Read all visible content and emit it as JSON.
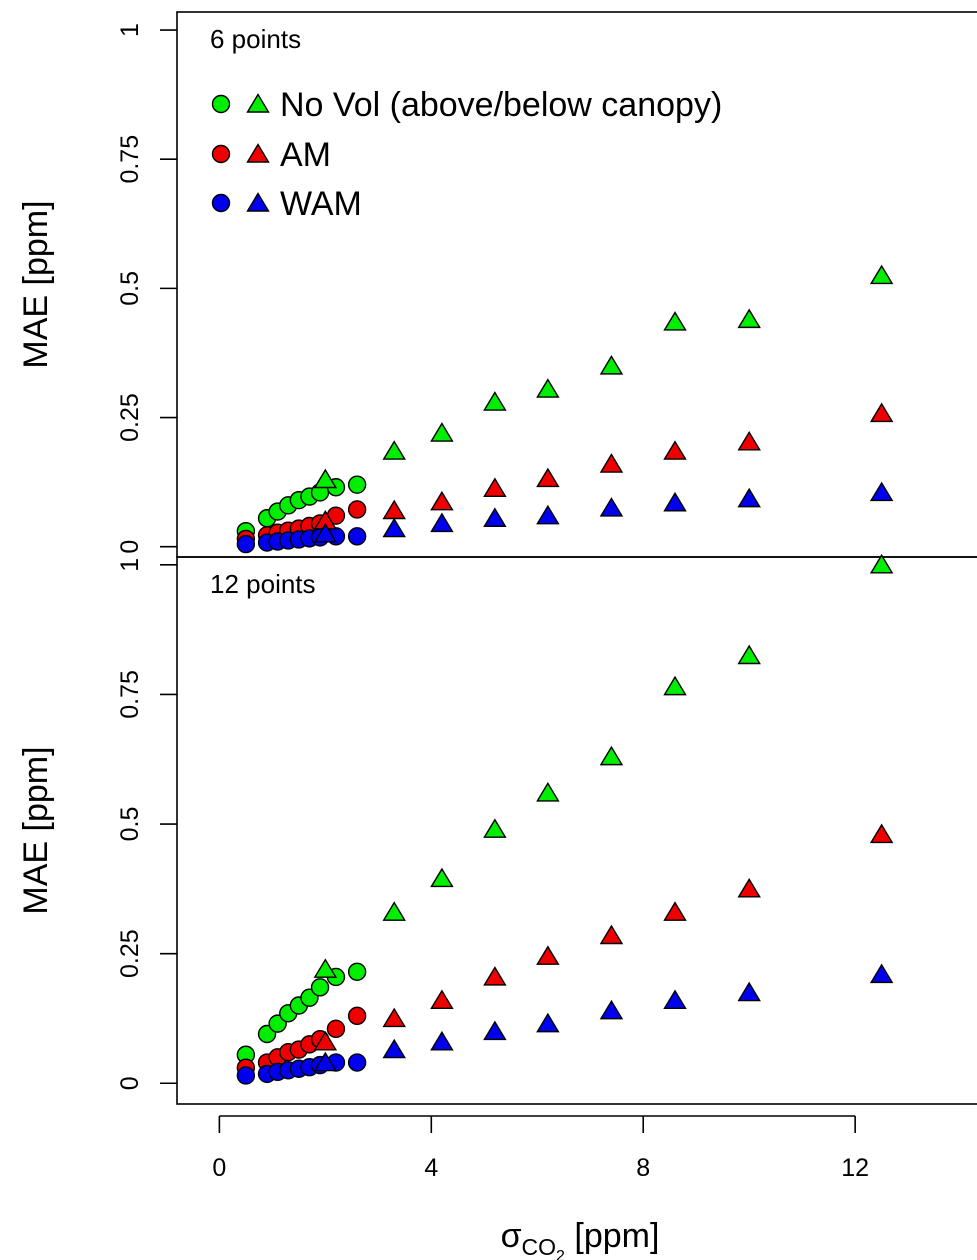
{
  "chart_data": {
    "type": "scatter",
    "xlabel_symbol": "σ",
    "xlabel_subscript": "CO",
    "xlabel_sub_subscript": "2",
    "xlabel_unit": " [ppm]",
    "ylabel": "MAE [ppm]",
    "xlim": [
      -0.8,
      14.3
    ],
    "x_ticks": [
      0,
      4,
      8,
      12
    ],
    "x_tick_labels": [
      "0",
      "4",
      "8",
      "12"
    ],
    "y_ticks": [
      0,
      0.25,
      0.5,
      0.75,
      1
    ],
    "y_tick_labels": [
      "0",
      "0.25",
      "0.5",
      "0.75",
      "1"
    ],
    "colors": {
      "No Vol": "#00ee00",
      "AM": "#ee0000",
      "WAM": "#0000ee"
    },
    "legend": {
      "position": "top-left",
      "entries": [
        {
          "label": "No Vol (above/below canopy)",
          "color": "#00ee00"
        },
        {
          "label": "AM",
          "color": "#ee0000"
        },
        {
          "label": "WAM",
          "color": "#0000ee"
        }
      ]
    },
    "panels": [
      {
        "label": "6 points",
        "ylim": [
          -0.02,
          1.035
        ],
        "series": [
          {
            "name": "No Vol",
            "marker": "circle",
            "x": [
              0.5,
              0.9,
              1.1,
              1.3,
              1.5,
              1.7,
              1.9,
              2.2,
              2.6
            ],
            "y": [
              0.03,
              0.055,
              0.068,
              0.08,
              0.09,
              0.097,
              0.105,
              0.115,
              0.12
            ]
          },
          {
            "name": "AM",
            "marker": "circle",
            "x": [
              0.5,
              0.9,
              1.1,
              1.3,
              1.5,
              1.7,
              1.9,
              2.2,
              2.6
            ],
            "y": [
              0.015,
              0.022,
              0.027,
              0.031,
              0.035,
              0.04,
              0.045,
              0.06,
              0.072
            ]
          },
          {
            "name": "WAM",
            "marker": "circle",
            "x": [
              0.5,
              0.9,
              1.1,
              1.3,
              1.5,
              1.7,
              1.9,
              2.2,
              2.6
            ],
            "y": [
              0.005,
              0.008,
              0.01,
              0.012,
              0.014,
              0.016,
              0.018,
              0.02,
              0.02
            ]
          },
          {
            "name": "No Vol",
            "marker": "triangle",
            "x": [
              2.0,
              3.3,
              4.2,
              5.2,
              6.2,
              7.4,
              8.6,
              10.0,
              12.5
            ],
            "y": [
              0.13,
              0.185,
              0.22,
              0.28,
              0.305,
              0.35,
              0.435,
              0.44,
              0.525
            ]
          },
          {
            "name": "AM",
            "marker": "triangle",
            "x": [
              2.0,
              3.3,
              4.2,
              5.2,
              6.2,
              7.4,
              8.6,
              10.0,
              12.5
            ],
            "y": [
              0.05,
              0.07,
              0.087,
              0.113,
              0.132,
              0.16,
              0.185,
              0.203,
              0.258
            ]
          },
          {
            "name": "WAM",
            "marker": "triangle",
            "x": [
              2.0,
              3.3,
              4.2,
              5.2,
              6.2,
              7.4,
              8.6,
              10.0,
              12.5
            ],
            "y": [
              0.025,
              0.035,
              0.045,
              0.055,
              0.06,
              0.075,
              0.085,
              0.093,
              0.105
            ]
          }
        ]
      },
      {
        "label": "12 points",
        "ylim": [
          -0.04,
          1.015
        ],
        "series": [
          {
            "name": "No Vol",
            "marker": "circle",
            "x": [
              0.5,
              0.9,
              1.1,
              1.3,
              1.5,
              1.7,
              1.9,
              2.2,
              2.6
            ],
            "y": [
              0.055,
              0.095,
              0.115,
              0.135,
              0.15,
              0.165,
              0.185,
              0.205,
              0.215
            ]
          },
          {
            "name": "AM",
            "marker": "circle",
            "x": [
              0.5,
              0.9,
              1.1,
              1.3,
              1.5,
              1.7,
              1.9,
              2.2,
              2.6
            ],
            "y": [
              0.03,
              0.04,
              0.05,
              0.06,
              0.065,
              0.075,
              0.085,
              0.105,
              0.13
            ]
          },
          {
            "name": "WAM",
            "marker": "circle",
            "x": [
              0.5,
              0.9,
              1.1,
              1.3,
              1.5,
              1.7,
              1.9,
              2.2,
              2.6
            ],
            "y": [
              0.015,
              0.018,
              0.022,
              0.025,
              0.028,
              0.031,
              0.035,
              0.04,
              0.04
            ]
          },
          {
            "name": "No Vol",
            "marker": "triangle",
            "x": [
              2.0,
              3.3,
              4.2,
              5.2,
              6.2,
              7.4,
              8.6,
              10.0,
              12.5
            ],
            "y": [
              0.22,
              0.33,
              0.395,
              0.49,
              0.56,
              0.63,
              0.765,
              0.825,
              1.0
            ]
          },
          {
            "name": "AM",
            "marker": "triangle",
            "x": [
              2.0,
              3.3,
              4.2,
              5.2,
              6.2,
              7.4,
              8.6,
              10.0,
              12.5
            ],
            "y": [
              0.08,
              0.125,
              0.16,
              0.205,
              0.245,
              0.285,
              0.33,
              0.375,
              0.48
            ]
          },
          {
            "name": "WAM",
            "marker": "triangle",
            "x": [
              2.0,
              3.3,
              4.2,
              5.2,
              6.2,
              7.4,
              8.6,
              10.0,
              12.5
            ],
            "y": [
              0.04,
              0.065,
              0.08,
              0.1,
              0.115,
              0.14,
              0.16,
              0.175,
              0.21
            ]
          }
        ]
      }
    ]
  }
}
